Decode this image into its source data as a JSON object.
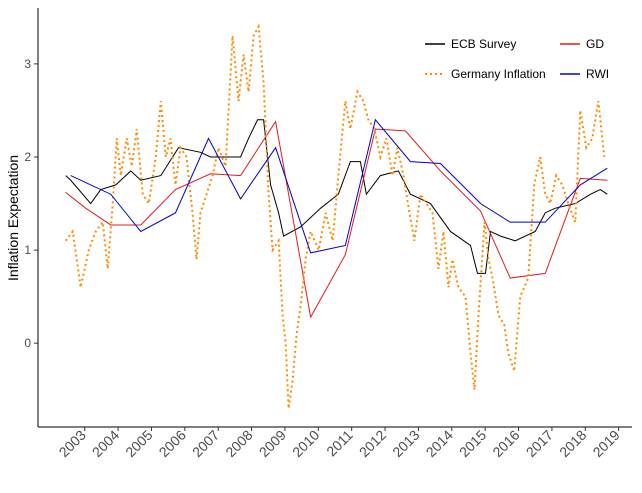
{
  "chart_data": {
    "type": "line",
    "ylabel": "Inflation Expectation",
    "xlim": [
      2001.6,
      2019.4
    ],
    "xticks": [
      2003,
      2004,
      2005,
      2006,
      2007,
      2008,
      2009,
      2010,
      2011,
      2012,
      2013,
      2014,
      2015,
      2016,
      2017,
      2018,
      2019
    ],
    "ylim": [
      -0.9,
      3.6
    ],
    "yticks": [
      0,
      1,
      2,
      3
    ],
    "grid": false,
    "legend": "top-right",
    "series": [
      {
        "name": "ECB Survey",
        "color": "#000000",
        "linestyle": "solid",
        "x": [
          2002.43,
          2002.58,
          2003.18,
          2003.48,
          2003.93,
          2004.38,
          2004.68,
          2005.28,
          2005.81,
          2006.47,
          2006.77,
          2007.67,
          2007.91,
          2008.18,
          2008.36,
          2008.57,
          2008.81,
          2008.96,
          2009.47,
          2010.07,
          2010.6,
          2010.96,
          2011.26,
          2011.44,
          2011.86,
          2012.4,
          2012.76,
          2013.36,
          2013.96,
          2014.56,
          2014.77,
          2015.01,
          2015.16,
          2015.46,
          2015.9,
          2016.5,
          2016.8,
          2017.1,
          2017.7,
          2018.16,
          2018.45,
          2018.66
        ],
        "values": [
          1.8,
          1.75,
          1.5,
          1.65,
          1.7,
          1.85,
          1.75,
          1.8,
          2.1,
          2.05,
          2.0,
          2.0,
          2.2,
          2.4,
          2.4,
          1.7,
          1.4,
          1.15,
          1.25,
          1.45,
          1.6,
          1.95,
          1.95,
          1.6,
          1.8,
          1.85,
          1.6,
          1.5,
          1.2,
          1.05,
          0.75,
          0.75,
          1.2,
          1.15,
          1.1,
          1.2,
          1.4,
          1.45,
          1.5,
          1.6,
          1.65,
          1.6
        ]
      },
      {
        "name": "GD",
        "color": "#e41a1c",
        "linestyle": "solid",
        "x": [
          2002.43,
          2003.03,
          2003.78,
          2004.68,
          2005.72,
          2006.77,
          2007.67,
          2008.72,
          2009.77,
          2010.81,
          2011.71,
          2012.61,
          2013.66,
          2014.86,
          2015.75,
          2016.8,
          2017.85,
          2018.66
        ],
        "values": [
          1.62,
          1.45,
          1.27,
          1.27,
          1.65,
          1.82,
          1.8,
          2.38,
          0.28,
          0.95,
          2.3,
          2.28,
          1.85,
          1.42,
          0.7,
          0.75,
          1.77,
          1.75
        ]
      },
      {
        "name": "Germany Inflation",
        "color": "#ff8c00",
        "linestyle": "dotted",
        "x": [
          2002.43,
          2002.64,
          2002.88,
          2003.12,
          2003.33,
          2003.54,
          2003.69,
          2003.84,
          2003.96,
          2004.08,
          2004.26,
          2004.41,
          2004.56,
          2004.74,
          2004.92,
          2005.13,
          2005.28,
          2005.43,
          2005.57,
          2005.72,
          2005.87,
          2006.05,
          2006.23,
          2006.35,
          2006.47,
          2006.65,
          2006.83,
          2007.01,
          2007.22,
          2007.43,
          2007.61,
          2007.76,
          2007.91,
          2008.06,
          2008.21,
          2008.36,
          2008.51,
          2008.63,
          2008.81,
          2008.93,
          2009.02,
          2009.11,
          2009.23,
          2009.35,
          2009.47,
          2009.62,
          2009.77,
          2010.01,
          2010.22,
          2010.43,
          2010.6,
          2010.81,
          2010.96,
          2011.17,
          2011.35,
          2011.5,
          2011.68,
          2011.86,
          2012.04,
          2012.22,
          2012.37,
          2012.55,
          2012.73,
          2012.88,
          2013.06,
          2013.24,
          2013.42,
          2013.6,
          2013.75,
          2013.9,
          2014.02,
          2014.2,
          2014.41,
          2014.56,
          2014.68,
          2014.8,
          2014.98,
          2015.1,
          2015.22,
          2015.4,
          2015.57,
          2015.69,
          2015.87,
          2016.05,
          2016.29,
          2016.47,
          2016.65,
          2016.8,
          2016.95,
          2017.13,
          2017.31,
          2017.49,
          2017.7,
          2017.85,
          2018.03,
          2018.21,
          2018.39,
          2018.57
        ],
        "values": [
          1.1,
          1.2,
          0.6,
          1.0,
          1.2,
          1.3,
          0.8,
          1.5,
          2.2,
          1.8,
          2.2,
          1.9,
          2.3,
          1.6,
          1.5,
          2.0,
          2.6,
          2.0,
          2.2,
          1.7,
          2.1,
          2.0,
          1.4,
          0.9,
          1.4,
          1.6,
          1.8,
          2.1,
          1.9,
          3.3,
          2.6,
          3.1,
          2.7,
          3.3,
          3.4,
          2.8,
          1.6,
          1.0,
          1.1,
          0.3,
          0.0,
          -0.7,
          -0.4,
          0.1,
          0.4,
          0.9,
          1.2,
          1.0,
          1.4,
          1.1,
          1.8,
          2.6,
          2.3,
          2.7,
          2.6,
          2.4,
          2.3,
          2.0,
          2.2,
          1.8,
          2.1,
          1.8,
          1.4,
          1.1,
          1.6,
          1.5,
          1.4,
          0.8,
          1.2,
          0.6,
          0.9,
          0.6,
          0.5,
          -0.1,
          -0.5,
          0.3,
          1.3,
          0.9,
          0.7,
          0.3,
          0.2,
          -0.1,
          -0.3,
          0.5,
          0.7,
          1.7,
          2.0,
          1.6,
          1.5,
          1.8,
          1.7,
          1.5,
          1.3,
          2.5,
          2.1,
          2.2,
          2.6,
          2.0
        ]
      },
      {
        "name": "RWI",
        "color": "#0000cd",
        "linestyle": "solid",
        "x": [
          2002.58,
          2003.78,
          2004.68,
          2005.72,
          2006.71,
          2007.67,
          2008.72,
          2009.77,
          2010.81,
          2011.71,
          2012.76,
          2013.66,
          2014.86,
          2015.75,
          2016.8,
          2017.85,
          2018.66
        ],
        "values": [
          1.8,
          1.6,
          1.2,
          1.4,
          2.2,
          1.55,
          2.1,
          0.97,
          1.05,
          2.4,
          1.95,
          1.93,
          1.5,
          1.3,
          1.3,
          1.7,
          1.88
        ]
      }
    ]
  }
}
